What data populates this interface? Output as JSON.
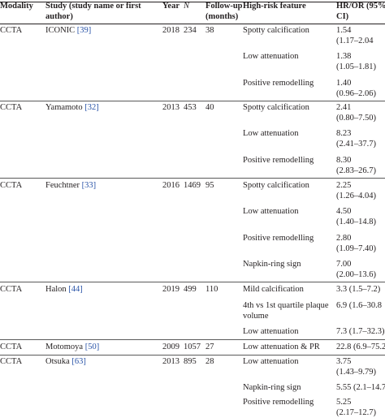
{
  "header": {
    "modality": "Modality",
    "study_l1": "Study (study name or first",
    "study_l2": "author)",
    "year": "Year",
    "n": "N",
    "follow_l1": "Follow-up",
    "follow_l2": "(months)",
    "feature": "High-risk feature",
    "hr_l1": "HR/OR (95%",
    "hr_l2": "CI)"
  },
  "studies": [
    {
      "modality": "CCTA",
      "study": "ICONIC",
      "ref": "[39]",
      "year": "2018",
      "n": "234",
      "followup": "38",
      "rows": [
        {
          "feature": "Spotty calcification",
          "hr": "1.54",
          "ci": "(1.17–2.04"
        },
        {
          "feature": "Low attenuation",
          "hr": "1.38",
          "ci": "(1.05–1.81)"
        },
        {
          "feature": "Positive remodelling",
          "hr": "1.40",
          "ci": "(0.96–2.06)"
        }
      ]
    },
    {
      "modality": "CCTA",
      "study": "Yamamoto",
      "ref": "[32]",
      "year": "2013",
      "n": "453",
      "followup": "40",
      "rows": [
        {
          "feature": "Spotty calcification",
          "hr": "2.41",
          "ci": "(0.80–7.50)"
        },
        {
          "feature": "Low attenuation",
          "hr": "8.23",
          "ci": "(2.41–37.7)"
        },
        {
          "feature": "Positive remodelling",
          "hr": "8.30",
          "ci": "(2.83–26.7)"
        }
      ]
    },
    {
      "modality": "CCTA",
      "study": "Feuchtner",
      "ref": "[33]",
      "year": "2016",
      "n": "1469",
      "followup": "95",
      "rows": [
        {
          "feature": "Spotty calcification",
          "hr": "2.25",
          "ci": "(1.26–4.04)"
        },
        {
          "feature": "Low attenuation",
          "hr": "4.50",
          "ci": "(1.40–14.8)"
        },
        {
          "feature": "Positive remodelling",
          "hr": "2.80",
          "ci": "(1.09–7.40)"
        },
        {
          "feature": "Napkin-ring sign",
          "hr": "7.00",
          "ci": "(2.00–13.6)"
        }
      ]
    },
    {
      "modality": "CCTA",
      "study": "Halon",
      "ref": "[44]",
      "year": "2019",
      "n": "499",
      "followup": "110",
      "rows": [
        {
          "feature": "Mild calcification",
          "hr": "3.3 (1.5–7.2)"
        },
        {
          "feature": "4th vs 1st quartile plaque",
          "feature2": "volume",
          "hr": "6.9 (1.6–30.8"
        },
        {
          "feature": "Low attenuation",
          "hr": "7.3 (1.7–32.3)"
        }
      ]
    },
    {
      "modality": "CCTA",
      "study": "Motomoya",
      "ref": "[50]",
      "year": "2009",
      "n": "1057",
      "followup": "27",
      "rows": [
        {
          "feature": "Low attenuation & PR",
          "hr": "22.8 (6.9–75.2"
        }
      ]
    },
    {
      "modality": "CCTA",
      "study": "Otsuka",
      "ref": "[63]",
      "year": "2013",
      "n": "895",
      "followup": "28",
      "rows": [
        {
          "feature": "Low attenuation",
          "hr": "3.75",
          "ci": "(1.43–9.79)"
        },
        {
          "feature": "Napkin-ring sign",
          "hr": "5.55 (2.1–14.7)"
        },
        {
          "feature": "Positive remodelling",
          "hr": "5.25",
          "ci": "(2.17–12.7)"
        }
      ]
    }
  ]
}
